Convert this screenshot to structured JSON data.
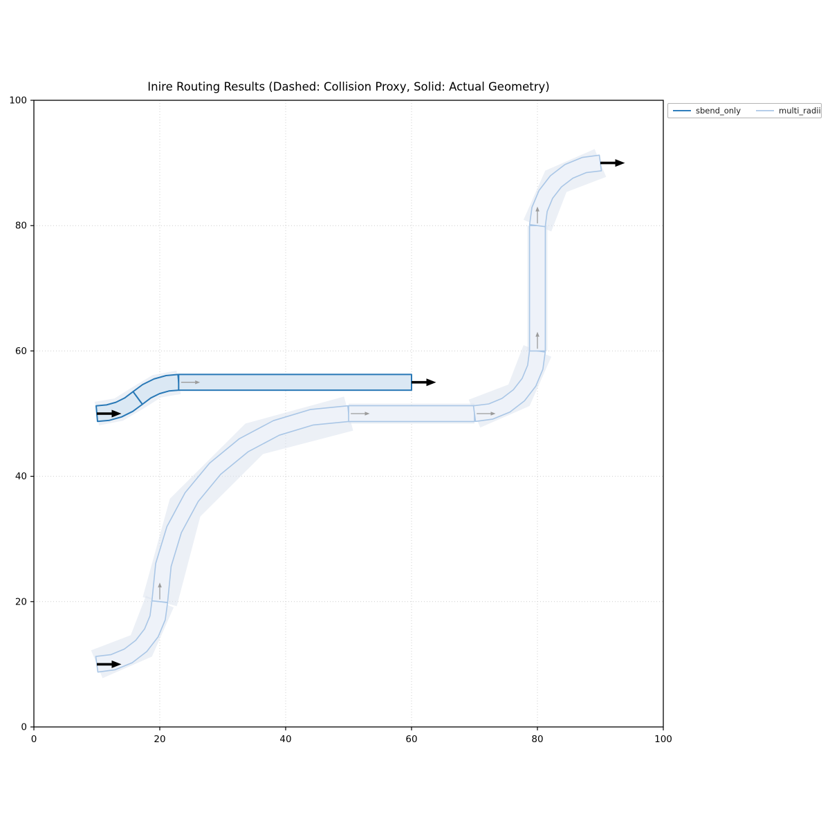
{
  "chart_data": {
    "type": "line",
    "subtype": "photonic-routing-geometry",
    "title": "Inire Routing Results (Dashed: Collision Proxy, Solid: Actual Geometry)",
    "xlabel": "",
    "ylabel": "",
    "xlim": [
      0,
      100
    ],
    "ylim": [
      0,
      100
    ],
    "xticks": [
      0,
      20,
      40,
      60,
      80,
      100
    ],
    "yticks": [
      0,
      20,
      40,
      60,
      80,
      100
    ],
    "grid": true,
    "grid_color": "#cccccc",
    "legend_position": "upper right, outside-right of axes",
    "legend": [
      {
        "label": "sbend_only",
        "color": "#2e7ebc"
      },
      {
        "label": "multi_radii",
        "color": "#b4cde9"
      }
    ],
    "port_arrow_color": "#000000",
    "segment_marker_color": "#9b9b9b",
    "routes": [
      {
        "name": "sbend_only",
        "color": "#2878b6",
        "fill": "#dbe8f4",
        "proxy_fill": "#dce3ef",
        "tube_half_width": 1.25,
        "start": [
          10,
          50
        ],
        "end": [
          60,
          55
        ],
        "segments": [
          {
            "kind": "arc-up",
            "points": [
              [
                10,
                50
              ],
              [
                11.77,
                50.16
              ],
              [
                13.48,
                50.64
              ],
              [
                15.07,
                51.43
              ],
              [
                16.5,
                52.5
              ]
            ],
            "proxy": [
              [
                10,
                50
              ],
              [
                13.48,
                50.64
              ],
              [
                16.5,
                52.5
              ]
            ],
            "proxy_hw": 1.9
          },
          {
            "kind": "arc-down",
            "points": [
              [
                16.5,
                52.5
              ],
              [
                17.93,
                53.57
              ],
              [
                19.52,
                54.36
              ],
              [
                21.23,
                54.84
              ],
              [
                23,
                55
              ]
            ],
            "proxy": [
              [
                16.5,
                52.5
              ],
              [
                19.52,
                54.36
              ],
              [
                23,
                55
              ]
            ],
            "proxy_hw": 1.9
          },
          {
            "kind": "straight",
            "points": [
              [
                23,
                55
              ],
              [
                60,
                55
              ]
            ],
            "proxy": [
              [
                23,
                55
              ],
              [
                60,
                55
              ]
            ],
            "proxy_hw": 1.4
          }
        ],
        "markers": [
          {
            "x": 23.4,
            "y": 55,
            "dir": "E",
            "len": 3.0
          }
        ],
        "ports": [
          {
            "x": 10,
            "y": 50,
            "dir": "E",
            "len": 3.9
          },
          {
            "x": 60,
            "y": 55,
            "dir": "E",
            "len": 3.9
          }
        ]
      },
      {
        "name": "multi_radii",
        "color": "#a9c6e6",
        "fill": "#eef2f9",
        "proxy_fill": "#dce3ef",
        "tube_half_width": 1.25,
        "start": [
          10,
          10
        ],
        "end": [
          90,
          90
        ],
        "segments": [
          {
            "kind": "bend-r10",
            "points": [
              [
                10,
                10
              ],
              [
                12.59,
                10.34
              ],
              [
                15,
                11.34
              ],
              [
                17.07,
                12.93
              ],
              [
                18.66,
                15
              ],
              [
                19.66,
                17.41
              ],
              [
                20,
                20
              ]
            ],
            "proxy": [
              [
                10,
                10
              ],
              [
                17.07,
                12.93
              ],
              [
                20,
                20
              ]
            ],
            "proxy_hw": 2.4
          },
          {
            "kind": "bend-r30",
            "points": [
              [
                20,
                20
              ],
              [
                20.58,
                25.85
              ],
              [
                22.28,
                31.48
              ],
              [
                25.06,
                36.67
              ],
              [
                28.79,
                41.21
              ],
              [
                33.33,
                44.95
              ],
              [
                38.52,
                47.72
              ],
              [
                44.15,
                49.42
              ],
              [
                50,
                50
              ]
            ],
            "proxy": [
              [
                20,
                20
              ],
              [
                24.02,
                35
              ],
              [
                35,
                45.98
              ],
              [
                50,
                50
              ]
            ],
            "proxy_hw": 2.8
          },
          {
            "kind": "straight",
            "points": [
              [
                50,
                50
              ],
              [
                70,
                50
              ]
            ],
            "proxy": [
              [
                50,
                50
              ],
              [
                70,
                50
              ]
            ],
            "proxy_hw": 1.6
          },
          {
            "kind": "bend-r10",
            "points": [
              [
                70,
                50
              ],
              [
                72.59,
                50.34
              ],
              [
                75,
                51.34
              ],
              [
                77.07,
                52.93
              ],
              [
                78.66,
                55
              ],
              [
                79.66,
                57.41
              ],
              [
                80,
                60
              ]
            ],
            "proxy": [
              [
                70,
                50
              ],
              [
                77.07,
                52.93
              ],
              [
                80,
                60
              ]
            ],
            "proxy_hw": 2.4
          },
          {
            "kind": "straight",
            "points": [
              [
                80,
                60
              ],
              [
                80,
                80
              ]
            ],
            "proxy": [
              [
                80,
                60
              ],
              [
                80,
                80
              ]
            ],
            "proxy_hw": 1.6
          },
          {
            "kind": "bend-r10",
            "points": [
              [
                80,
                80
              ],
              [
                80.34,
                82.59
              ],
              [
                81.34,
                85
              ],
              [
                82.93,
                87.07
              ],
              [
                85,
                88.66
              ],
              [
                87.41,
                89.66
              ],
              [
                90,
                90
              ]
            ],
            "proxy": [
              [
                80,
                80
              ],
              [
                82.93,
                87.07
              ],
              [
                90,
                90
              ]
            ],
            "proxy_hw": 2.4
          }
        ],
        "markers": [
          {
            "x": 20,
            "y": 20.35,
            "dir": "N",
            "len": 2.7
          },
          {
            "x": 50.35,
            "y": 50,
            "dir": "E",
            "len": 3.0
          },
          {
            "x": 70.35,
            "y": 50,
            "dir": "E",
            "len": 3.0
          },
          {
            "x": 80,
            "y": 60.35,
            "dir": "N",
            "len": 2.7
          },
          {
            "x": 80,
            "y": 80.35,
            "dir": "N",
            "len": 2.7
          }
        ],
        "ports": [
          {
            "x": 10,
            "y": 10,
            "dir": "E",
            "len": 3.9
          },
          {
            "x": 90,
            "y": 90,
            "dir": "E",
            "len": 3.9
          }
        ]
      }
    ]
  }
}
